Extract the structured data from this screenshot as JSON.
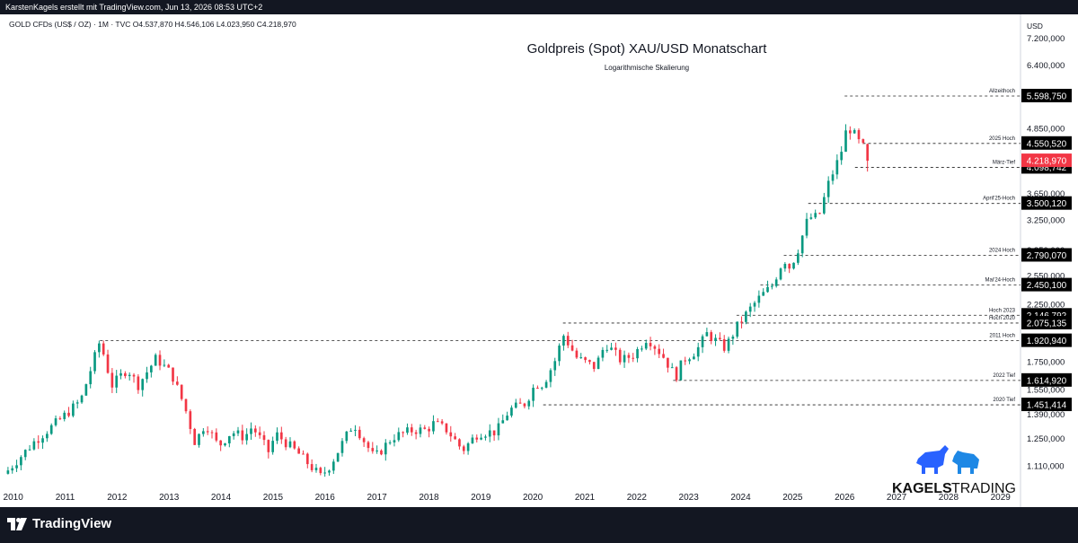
{
  "header": {
    "attribution": "KarstenKagels erstellt mit TradingView.com, Jun 13, 2026 08:53 UTC+2"
  },
  "symbol_line": "GOLD CFDs (US$ / OZ) · 1M · TVC  O4.537,870  H4.546,106  L4.023,950  C4.218,970",
  "brand": {
    "kagels_word1": "KAGELS",
    "kagels_word2": "TRADING",
    "footer_logo": "TradingView"
  },
  "colors": {
    "up": "#089981",
    "down": "#f23645",
    "last_price_bg": "#f23645",
    "level_bg": "#000000",
    "bull": "#2962ff",
    "footer_bg": "#131722"
  },
  "chart_data": {
    "type": "candlestick",
    "title": "Goldpreis (Spot) XAU/USD Monatschart",
    "subtitle": "Logarithmische Skalierung",
    "y_unit_label": "USD",
    "y_scale": "log",
    "ylim": [
      1000,
      8000
    ],
    "xlim": [
      2009.85,
      2029.35
    ],
    "y_ticks": [
      "7.200,000",
      "6.400,000",
      "4.850,000",
      "3.650,000",
      "3.250,000",
      "2.850,000",
      "2.550,000",
      "2.250,000",
      "1.750,000",
      "1.550,000",
      "1.390,000",
      "1.250,000",
      "1.110,000"
    ],
    "x_ticks": [
      "2010",
      "2011",
      "2012",
      "2013",
      "2014",
      "2015",
      "2016",
      "2017",
      "2018",
      "2019",
      "2020",
      "2021",
      "2022",
      "2023",
      "2024",
      "2025",
      "2026",
      "2027",
      "2028",
      "2029"
    ],
    "levels": [
      {
        "label": "Allzeithoch",
        "value": 5598.75,
        "price": "5.598,750",
        "start": 2026.0
      },
      {
        "label": "2025 Hoch",
        "value": 4550.52,
        "price": "4.550,520",
        "start": 2026.35
      },
      {
        "label": "März-Tief",
        "value": 4098.742,
        "price": "4.098,742",
        "start": 2026.2
      },
      {
        "label": "April'25-Hoch",
        "value": 3500.12,
        "price": "3.500,120",
        "start": 2025.3
      },
      {
        "label": "2024 Hoch",
        "value": 2790.07,
        "price": "2.790,070",
        "start": 2024.83
      },
      {
        "label": "Mai'24-Hoch",
        "value": 2450.1,
        "price": "2.450,100",
        "start": 2024.38
      },
      {
        "label": "Hoch 2023",
        "value": 2146.792,
        "price": "2.146,792",
        "start": 2023.92
      },
      {
        "label": "Hoch 2020",
        "value": 2075.135,
        "price": "2.075,135",
        "start": 2020.58
      },
      {
        "label": "2011 Hoch",
        "value": 1920.94,
        "price": "1.920,940",
        "start": 2011.67
      },
      {
        "label": "2022 Tief",
        "value": 1614.92,
        "price": "1.614,920",
        "start": 2022.7
      },
      {
        "label": "2020 Tief",
        "value": 1451.414,
        "price": "1.451,414",
        "start": 2020.2
      }
    ],
    "last_price": {
      "value": 4218.97,
      "price": "4.218,970"
    },
    "anchors": [
      [
        2009.9,
        1090
      ],
      [
        2010.42,
        1240
      ],
      [
        2010.9,
        1360
      ],
      [
        2011.3,
        1480
      ],
      [
        2011.67,
        1920
      ],
      [
        2011.9,
        1580
      ],
      [
        2012.2,
        1700
      ],
      [
        2012.4,
        1580
      ],
      [
        2012.75,
        1780
      ],
      [
        2013.05,
        1660
      ],
      [
        2013.3,
        1440
      ],
      [
        2013.5,
        1230
      ],
      [
        2013.7,
        1340
      ],
      [
        2013.95,
        1210
      ],
      [
        2014.2,
        1290
      ],
      [
        2014.45,
        1260
      ],
      [
        2014.6,
        1320
      ],
      [
        2014.92,
        1180
      ],
      [
        2015.05,
        1280
      ],
      [
        2015.5,
        1170
      ],
      [
        2015.92,
        1060
      ],
      [
        2016.1,
        1115
      ],
      [
        2016.55,
        1340
      ],
      [
        2016.95,
        1150
      ],
      [
        2017.3,
        1260
      ],
      [
        2017.7,
        1300
      ],
      [
        2017.95,
        1300
      ],
      [
        2018.1,
        1340
      ],
      [
        2018.35,
        1300
      ],
      [
        2018.65,
        1190
      ],
      [
        2018.95,
        1285
      ],
      [
        2019.3,
        1290
      ],
      [
        2019.55,
        1420
      ],
      [
        2019.85,
        1460
      ],
      [
        2020.05,
        1590
      ],
      [
        2020.2,
        1590
      ],
      [
        2020.45,
        1780
      ],
      [
        2020.58,
        1975
      ],
      [
        2020.85,
        1780
      ],
      [
        2021.2,
        1710
      ],
      [
        2021.4,
        1900
      ],
      [
        2021.7,
        1760
      ],
      [
        2021.95,
        1810
      ],
      [
        2022.2,
        1950
      ],
      [
        2022.5,
        1800
      ],
      [
        2022.75,
        1640
      ],
      [
        2022.9,
        1770
      ],
      [
        2023.15,
        1840
      ],
      [
        2023.35,
        1980
      ],
      [
        2023.7,
        1860
      ],
      [
        2023.95,
        2060
      ],
      [
        2024.2,
        2220
      ],
      [
        2024.38,
        2330
      ],
      [
        2024.6,
        2440
      ],
      [
        2024.83,
        2750
      ],
      [
        2024.95,
        2640
      ],
      [
        2025.1,
        2860
      ],
      [
        2025.3,
        3290
      ],
      [
        2025.5,
        3300
      ],
      [
        2025.7,
        3850
      ],
      [
        2025.92,
        4330
      ],
      [
        2026.05,
        4900
      ],
      [
        2026.15,
        4800
      ],
      [
        2026.25,
        4600
      ],
      [
        2026.35,
        4500
      ],
      [
        2026.44,
        4220
      ]
    ]
  }
}
